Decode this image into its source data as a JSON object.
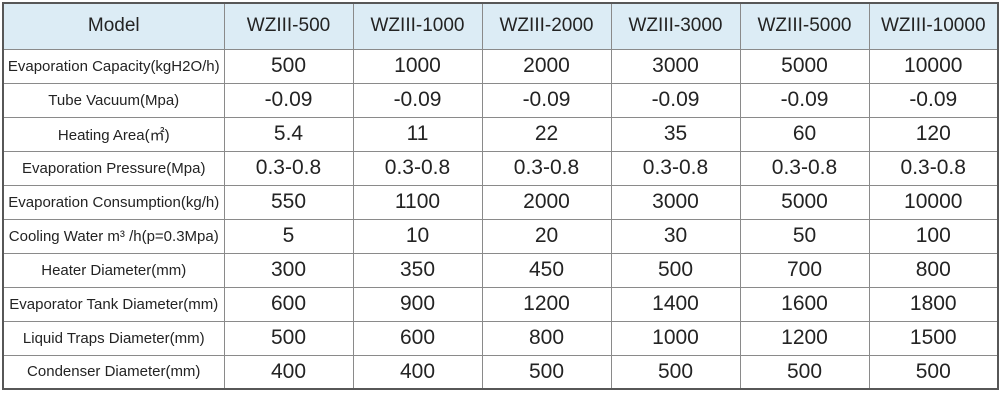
{
  "table": {
    "header": [
      "Model",
      "WZIII-500",
      "WZIII-1000",
      "WZIII-2000",
      "WZIII-3000",
      "WZIII-5000",
      "WZIII-10000"
    ],
    "rows": [
      {
        "label": "Evaporation Capacity(kgH2O/h)",
        "values": [
          "500",
          "1000",
          "2000",
          "3000",
          "5000",
          "10000"
        ]
      },
      {
        "label": "Tube Vacuum(Mpa)",
        "values": [
          "-0.09",
          "-0.09",
          "-0.09",
          "-0.09",
          "-0.09",
          "-0.09"
        ]
      },
      {
        "label": "Heating Area(㎡)",
        "values": [
          "5.4",
          "11",
          "22",
          "35",
          "60",
          "120"
        ]
      },
      {
        "label": "Evaporation Pressure(Mpa)",
        "values": [
          "0.3-0.8",
          "0.3-0.8",
          "0.3-0.8",
          "0.3-0.8",
          "0.3-0.8",
          "0.3-0.8"
        ]
      },
      {
        "label": "Evaporation Consumption(kg/h)",
        "values": [
          "550",
          "1100",
          "2000",
          "3000",
          "5000",
          "10000"
        ]
      },
      {
        "label": "Cooling Water m³ /h(p=0.3Mpa)",
        "values": [
          "5",
          "10",
          "20",
          "30",
          "50",
          "100"
        ]
      },
      {
        "label": "Heater Diameter(mm)",
        "values": [
          "300",
          "350",
          "450",
          "500",
          "700",
          "800"
        ]
      },
      {
        "label": "Evaporator Tank Diameter(mm)",
        "values": [
          "600",
          "900",
          "1200",
          "1400",
          "1600",
          "1800"
        ]
      },
      {
        "label": "Liquid Traps Diameter(mm)",
        "values": [
          "500",
          "600",
          "800",
          "1000",
          "1200",
          "1500"
        ]
      },
      {
        "label": "Condenser Diameter(mm)",
        "values": [
          "400",
          "400",
          "500",
          "500",
          "500",
          "500"
        ]
      }
    ]
  },
  "colors": {
    "header_bg": "#dcecf5",
    "outer_border": "#575757",
    "inner_border": "#8a8a8a",
    "text": "#232323"
  }
}
